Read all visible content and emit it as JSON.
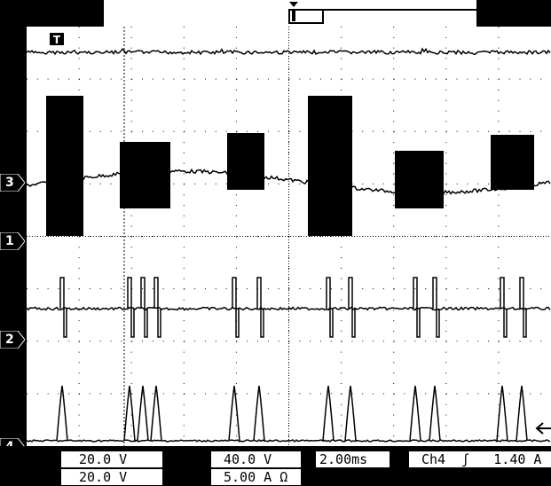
{
  "channel_markers": {
    "ch3": "3",
    "ch1": "1",
    "ch2": "2",
    "ch4": "4"
  },
  "trigger_marker": "T",
  "readout": {
    "ch1_scale": "20.0 V",
    "ch2_scale": "20.0 V",
    "ch3_scale": "40.0 V",
    "ch4_scale": "5.00 A Ω",
    "timebase": "2.00ms",
    "trigger_source": "Ch4",
    "trigger_slope_symbol": "ʃ",
    "trigger_level": "1.40 A"
  },
  "colors": {
    "screen_bg": "#ffffff",
    "frame_bg": "#000000",
    "trace": "#000000",
    "grid": "#000000"
  }
}
